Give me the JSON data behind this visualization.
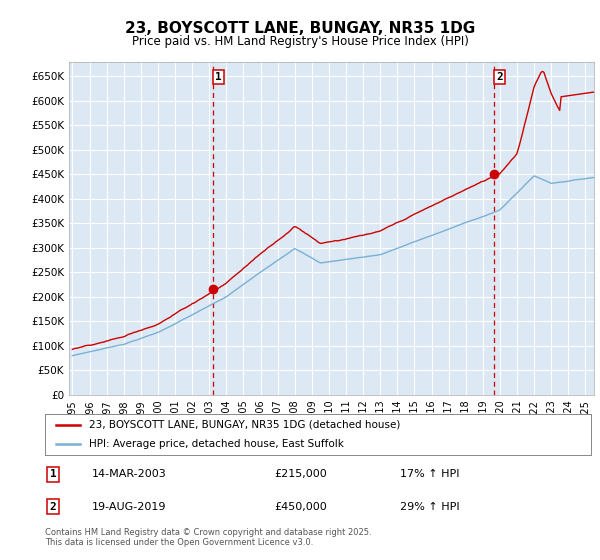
{
  "title": "23, BOYSCOTT LANE, BUNGAY, NR35 1DG",
  "subtitle": "Price paid vs. HM Land Registry's House Price Index (HPI)",
  "ylim": [
    0,
    680000
  ],
  "yticks": [
    0,
    50000,
    100000,
    150000,
    200000,
    250000,
    300000,
    350000,
    400000,
    450000,
    500000,
    550000,
    600000,
    650000
  ],
  "bg_color": "#dce9f5",
  "grid_color": "#ffffff",
  "line1_color": "#cc0000",
  "line2_color": "#7ab0d4",
  "vline_color": "#cc0000",
  "sale1_x": 2003.2,
  "sale1_y": 215000,
  "sale2_x": 2019.63,
  "sale2_y": 450000,
  "legend1": "23, BOYSCOTT LANE, BUNGAY, NR35 1DG (detached house)",
  "legend2": "HPI: Average price, detached house, East Suffolk",
  "annotation1_label": "1",
  "annotation1_date": "14-MAR-2003",
  "annotation1_price": "£215,000",
  "annotation1_hpi": "17% ↑ HPI",
  "annotation2_label": "2",
  "annotation2_date": "19-AUG-2019",
  "annotation2_price": "£450,000",
  "annotation2_hpi": "29% ↑ HPI",
  "copyright": "Contains HM Land Registry data © Crown copyright and database right 2025.\nThis data is licensed under the Open Government Licence v3.0.",
  "xmin": 1995,
  "xmax": 2026,
  "xticks": [
    1995,
    1996,
    1997,
    1998,
    1999,
    2000,
    2001,
    2002,
    2003,
    2004,
    2005,
    2006,
    2007,
    2008,
    2009,
    2010,
    2011,
    2012,
    2013,
    2014,
    2015,
    2016,
    2017,
    2018,
    2019,
    2020,
    2021,
    2022,
    2023,
    2024,
    2025
  ]
}
